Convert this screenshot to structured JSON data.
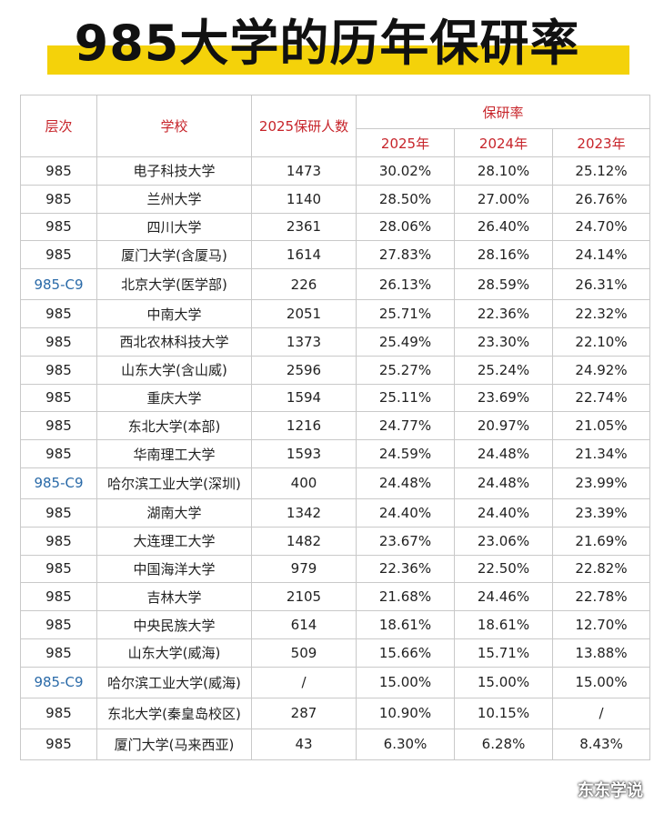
{
  "title": "985大学的历年保研率",
  "headers": {
    "level": "层次",
    "school": "学校",
    "count": "2025保研人数",
    "rate_group": "保研率",
    "years": [
      "2025年",
      "2024年",
      "2023年"
    ]
  },
  "rows": [
    {
      "level": "985",
      "school": "电子科技大学",
      "count": "1473",
      "r2025": "30.02%",
      "r2024": "28.10%",
      "r2023": "25.12%"
    },
    {
      "level": "985",
      "school": "兰州大学",
      "count": "1140",
      "r2025": "28.50%",
      "r2024": "27.00%",
      "r2023": "26.76%"
    },
    {
      "level": "985",
      "school": "四川大学",
      "count": "2361",
      "r2025": "28.06%",
      "r2024": "26.40%",
      "r2023": "24.70%"
    },
    {
      "level": "985",
      "school": "厦门大学(含厦马)",
      "count": "1614",
      "r2025": "27.83%",
      "r2024": "28.16%",
      "r2023": "24.14%"
    },
    {
      "level": "985-C9",
      "school": "北京大学(医学部)",
      "count": "226",
      "r2025": "26.13%",
      "r2024": "28.59%",
      "r2023": "26.31%"
    },
    {
      "level": "985",
      "school": "中南大学",
      "count": "2051",
      "r2025": "25.71%",
      "r2024": "22.36%",
      "r2023": "22.32%"
    },
    {
      "level": "985",
      "school": "西北农林科技大学",
      "count": "1373",
      "r2025": "25.49%",
      "r2024": "23.30%",
      "r2023": "22.10%"
    },
    {
      "level": "985",
      "school": "山东大学(含山威)",
      "count": "2596",
      "r2025": "25.27%",
      "r2024": "25.24%",
      "r2023": "24.92%"
    },
    {
      "level": "985",
      "school": "重庆大学",
      "count": "1594",
      "r2025": "25.11%",
      "r2024": "23.69%",
      "r2023": "22.74%"
    },
    {
      "level": "985",
      "school": "东北大学(本部)",
      "count": "1216",
      "r2025": "24.77%",
      "r2024": "20.97%",
      "r2023": "21.05%"
    },
    {
      "level": "985",
      "school": "华南理工大学",
      "count": "1593",
      "r2025": "24.59%",
      "r2024": "24.48%",
      "r2023": "21.34%"
    },
    {
      "level": "985-C9",
      "school": "哈尔滨工业大学(深圳)",
      "count": "400",
      "r2025": "24.48%",
      "r2024": "24.48%",
      "r2023": "23.99%"
    },
    {
      "level": "985",
      "school": "湖南大学",
      "count": "1342",
      "r2025": "24.40%",
      "r2024": "24.40%",
      "r2023": "23.39%"
    },
    {
      "level": "985",
      "school": "大连理工大学",
      "count": "1482",
      "r2025": "23.67%",
      "r2024": "23.06%",
      "r2023": "21.69%"
    },
    {
      "level": "985",
      "school": "中国海洋大学",
      "count": "979",
      "r2025": "22.36%",
      "r2024": "22.50%",
      "r2023": "22.82%"
    },
    {
      "level": "985",
      "school": "吉林大学",
      "count": "2105",
      "r2025": "21.68%",
      "r2024": "24.46%",
      "r2023": "22.78%"
    },
    {
      "level": "985",
      "school": "中央民族大学",
      "count": "614",
      "r2025": "18.61%",
      "r2024": "18.61%",
      "r2023": "12.70%"
    },
    {
      "level": "985",
      "school": "山东大学(威海)",
      "count": "509",
      "r2025": "15.66%",
      "r2024": "15.71%",
      "r2023": "13.88%"
    },
    {
      "level": "985-C9",
      "school": "哈尔滨工业大学(威海)",
      "count": "/",
      "r2025": "15.00%",
      "r2024": "15.00%",
      "r2023": "15.00%"
    },
    {
      "level": "985",
      "school": "东北大学(秦皇岛校区)",
      "count": "287",
      "r2025": "10.90%",
      "r2024": "10.15%",
      "r2023": "/"
    },
    {
      "level": "985",
      "school": "厦门大学(马来西亚)",
      "count": "43",
      "r2025": "6.30%",
      "r2024": "6.28%",
      "r2023": "8.43%"
    }
  ],
  "watermark": "东东学说",
  "colors": {
    "header_text": "#c7242a",
    "c9_text": "#2a6aa8",
    "title_highlight": "#f4d20a"
  }
}
